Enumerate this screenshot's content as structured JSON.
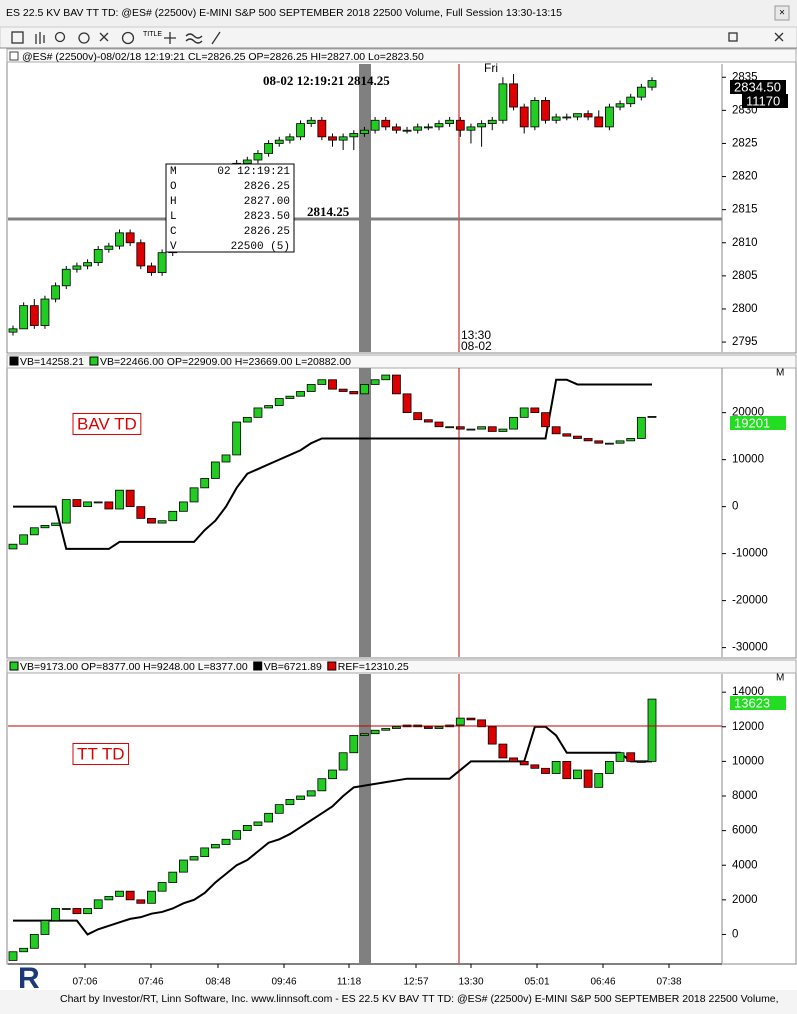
{
  "window": {
    "title": "ES 22.5 KV BAV TT TD: @ES# (22500v) E-MINI S&P 500 SEPTEMBER 2018 22500 Volume, Full Session 13:30-13:15"
  },
  "toolbar": {
    "title_button": "TITLE"
  },
  "panels": [
    {
      "header": [
        {
          "text": "@ES# (22500v)-08/02/18 12:19:21 CL=2826.25 OP=2826.25 HI=2827.00 Lo=2823.50",
          "swatch": null
        }
      ],
      "ylim": [
        2793.5,
        2837
      ],
      "yticks": [
        2835,
        2830,
        2825,
        2820,
        2815,
        2810,
        2805,
        2800,
        2795
      ],
      "open": [
        2796.5,
        2797,
        2800.5,
        2797.5,
        2801.5,
        2803.5,
        2806,
        2806.5,
        2807,
        2809,
        2809.5,
        2811.5,
        2810,
        2806.5,
        2805.5,
        2808.5,
        2812,
        2815,
        2816,
        2818.5,
        2819.5,
        2820.5,
        2822,
        2822.5,
        2823.5,
        2825,
        2825.5,
        2826,
        2828,
        2828.5,
        2826,
        2825.5,
        2826,
        2826.5,
        2827,
        2828.5,
        2827.5,
        2827,
        2827,
        2827.5,
        2827.5,
        2828,
        2828.5,
        2827,
        2827.5,
        2828,
        2828.5,
        2834,
        2830.5,
        2827.5,
        2831.5,
        2828.5,
        2829,
        2829,
        2829.5,
        2829,
        2827.5,
        2830.5,
        2831,
        2832,
        2833.5
      ],
      "high": [
        2797.5,
        2801,
        2801.5,
        2802,
        2804,
        2806.5,
        2807,
        2807.5,
        2809.5,
        2810,
        2812,
        2812,
        2810.5,
        2807,
        2809,
        2812.5,
        2815.5,
        2816.5,
        2819,
        2820,
        2821,
        2822.5,
        2823,
        2824,
        2825.5,
        2826,
        2826.5,
        2828.5,
        2829,
        2829,
        2826.5,
        2826.5,
        2827,
        2827.5,
        2829,
        2829,
        2828,
        2827.5,
        2828,
        2828,
        2828.5,
        2829,
        2829,
        2828,
        2828.5,
        2829,
        2835,
        2835.5,
        2831,
        2832,
        2832,
        2829.5,
        2829.5,
        2829.5,
        2830,
        2830,
        2831,
        2831.5,
        2832.5,
        2834,
        2835
      ],
      "low": [
        2796,
        2797,
        2797,
        2797,
        2801,
        2803,
        2805.5,
        2806,
        2806.5,
        2808.5,
        2809,
        2809.5,
        2806,
        2805,
        2805,
        2808,
        2811.5,
        2814.5,
        2815.5,
        2818,
        2819,
        2820,
        2821.5,
        2822,
        2823,
        2824.5,
        2825,
        2825.5,
        2827.5,
        2825.5,
        2824.5,
        2824,
        2824,
        2826,
        2826.5,
        2827,
        2826.5,
        2826.5,
        2826.5,
        2827,
        2827,
        2827.5,
        2826,
        2825,
        2824.5,
        2827,
        2828,
        2830,
        2826.5,
        2827,
        2828,
        2828,
        2828.5,
        2828.5,
        2828.5,
        2827.5,
        2827,
        2830,
        2830.5,
        2831.5,
        2833
      ],
      "close": [
        2797,
        2800.5,
        2797.5,
        2801.5,
        2803.5,
        2806,
        2806.5,
        2807,
        2809,
        2809.5,
        2811.5,
        2810,
        2806.5,
        2805.5,
        2808.5,
        2812,
        2815,
        2816,
        2818.5,
        2819.5,
        2820.5,
        2822,
        2822.5,
        2823.5,
        2825,
        2825.5,
        2826,
        2828,
        2828.5,
        2826,
        2825.5,
        2826,
        2826.5,
        2827,
        2828.5,
        2827.5,
        2827,
        2827,
        2827.5,
        2827.5,
        2828,
        2828.5,
        2827,
        2827.5,
        2828,
        2828.5,
        2834,
        2830.5,
        2827.5,
        2831.5,
        2828.5,
        2829,
        2829,
        2829.5,
        2829,
        2827.5,
        2830.5,
        2831,
        2832,
        2833.5,
        2834.5
      ],
      "price_tag": "2834.50",
      "volume_tag": "11170",
      "crosshair_label": "08-02 12:19:21 2814.25",
      "crosshair_price": "2814.25",
      "day_label": "Fri",
      "time_label": "13:30",
      "date_label": "08-02",
      "info_box": [
        [
          "M",
          "02 12:19:21"
        ],
        [
          "O",
          "2826.25"
        ],
        [
          "H",
          "2827.00"
        ],
        [
          "L",
          "2823.50"
        ],
        [
          "C",
          "2826.25"
        ],
        [
          "V",
          "22500 (5)"
        ]
      ]
    },
    {
      "header": [
        {
          "text": "VB=14258.21",
          "swatch": "#000000"
        },
        {
          "text": "VB=22466.00 OP=22909.00 H=23669.00 L=20882.00",
          "swatch": "#22cc22"
        }
      ],
      "menu_label": "M",
      "label": "BAV TD",
      "ylim": [
        -32000,
        29500
      ],
      "yticks": [
        20000,
        10000,
        0,
        -10000,
        -20000,
        -30000
      ],
      "open": [
        -9000,
        -8000,
        -6000,
        -4500,
        -4000,
        -3500,
        1500,
        0,
        1000,
        1000,
        -500,
        3500,
        0,
        -2500,
        -3500,
        -3000,
        -1000,
        1000,
        4000,
        6000,
        9500,
        11000,
        18000,
        19000,
        21000,
        21500,
        23000,
        23500,
        24500,
        26000,
        27000,
        25000,
        24500,
        24000,
        26000,
        27000,
        28000,
        24000,
        20000,
        18500,
        18000,
        17000,
        17000,
        16500,
        16500,
        17000,
        16000,
        16500,
        19000,
        21000,
        20000,
        17000,
        15500,
        15000,
        14500,
        14000,
        13500,
        13500,
        14000,
        14500,
        19000
      ],
      "close": [
        -8000,
        -6000,
        -4500,
        -4000,
        -3500,
        1500,
        0,
        1000,
        1000,
        -500,
        3500,
        0,
        -2500,
        -3500,
        -3000,
        -1000,
        1000,
        4000,
        6000,
        9500,
        11000,
        18000,
        19000,
        21000,
        21500,
        23000,
        23500,
        24500,
        26000,
        27000,
        25000,
        24500,
        24000,
        26000,
        27000,
        28000,
        24000,
        20000,
        18500,
        18000,
        17000,
        17000,
        16500,
        16500,
        17000,
        16000,
        16500,
        19000,
        21000,
        20000,
        17000,
        15500,
        15000,
        14500,
        14000,
        13500,
        13500,
        14000,
        14500,
        19000,
        19200
      ],
      "line": [
        0,
        0,
        0,
        0,
        0,
        -9000,
        -9000,
        -9000,
        -9000,
        -9000,
        -7500,
        -7500,
        -7500,
        -7500,
        -7500,
        -7500,
        -7500,
        -7500,
        -5000,
        -3000,
        0,
        4000,
        7000,
        8000,
        9000,
        10000,
        11000,
        12000,
        13500,
        14500,
        14500,
        14500,
        14500,
        14500,
        14500,
        14500,
        14500,
        14500,
        14500,
        14500,
        14500,
        14500,
        14500,
        14500,
        14500,
        14500,
        14500,
        14500,
        14500,
        14500,
        14500,
        27000,
        27000,
        26000,
        26000,
        26000,
        26000,
        26000,
        26000,
        26000,
        26000
      ],
      "price_tag": "19201"
    },
    {
      "header": [
        {
          "text": "VB=9173.00 OP=8377.00 H=9248.00 L=8377.00",
          "swatch": "#22cc22"
        },
        {
          "text": "VB=6721.89",
          "swatch": "#000000"
        },
        {
          "text": "REF=12310.25",
          "swatch": "#dd0000"
        }
      ],
      "menu_label": "M",
      "label": "TT TD",
      "ylim": [
        -1650,
        15050
      ],
      "yticks": [
        14000,
        12000,
        10000,
        8000,
        6000,
        4000,
        2000,
        0
      ],
      "open": [
        -1500,
        -1000,
        -800,
        0,
        800,
        1500,
        1500,
        1200,
        1500,
        2000,
        2200,
        2500,
        2000,
        1800,
        2500,
        3000,
        3600,
        4300,
        4500,
        5000,
        5200,
        5500,
        6000,
        6300,
        6500,
        7000,
        7500,
        7800,
        8000,
        8300,
        9000,
        9500,
        10500,
        11500,
        11600,
        11800,
        11900,
        12000,
        12100,
        12000,
        11900,
        12000,
        12100,
        12500,
        12400,
        12000,
        11000,
        10200,
        10000,
        9800,
        9600,
        9300,
        10000,
        9000,
        9500,
        8500,
        9300,
        10000,
        10500,
        10000,
        10000
      ],
      "close": [
        -1000,
        -800,
        0,
        800,
        1500,
        1500,
        1200,
        1500,
        2000,
        2200,
        2500,
        2000,
        1800,
        2500,
        3000,
        3600,
        4300,
        4500,
        5000,
        5200,
        5500,
        6000,
        6300,
        6500,
        7000,
        7500,
        7800,
        8000,
        8300,
        9000,
        9500,
        10500,
        11500,
        11600,
        11800,
        11900,
        12000,
        12100,
        12000,
        11900,
        12000,
        12100,
        12500,
        12400,
        12000,
        11000,
        10200,
        10000,
        9800,
        9600,
        9300,
        10000,
        9000,
        9500,
        8500,
        9300,
        10000,
        10500,
        10000,
        10000,
        13600
      ],
      "line": [
        800,
        800,
        800,
        800,
        800,
        800,
        800,
        0,
        300,
        500,
        700,
        900,
        1000,
        1200,
        1300,
        1500,
        1800,
        2000,
        2400,
        3000,
        3500,
        4000,
        4300,
        4800,
        5300,
        5500,
        5800,
        6200,
        6600,
        7000,
        7400,
        8000,
        8500,
        8600,
        8700,
        8800,
        8900,
        9000,
        9000,
        9000,
        9000,
        9000,
        9500,
        10000,
        10000,
        10000,
        10000,
        10000,
        10000,
        12000,
        12000,
        11500,
        10500,
        10500,
        10500,
        10500,
        10500,
        10500,
        10000,
        10000,
        10000
      ],
      "price_tag": "13623"
    }
  ],
  "time_axis": [
    "07:06",
    "07:46",
    "08:48",
    "09:46",
    "11:18",
    "12:57",
    "13:30",
    "05:01",
    "06:46",
    "07:38"
  ],
  "footer": "Chart by Investor/RT, Linn Software, Inc. www.linnsoft.com - ES 22.5 KV BAV TT TD: @ES# (22500v) E-MINI S&P 500 SEPTEMBER 2018 22500 Volume,"
}
